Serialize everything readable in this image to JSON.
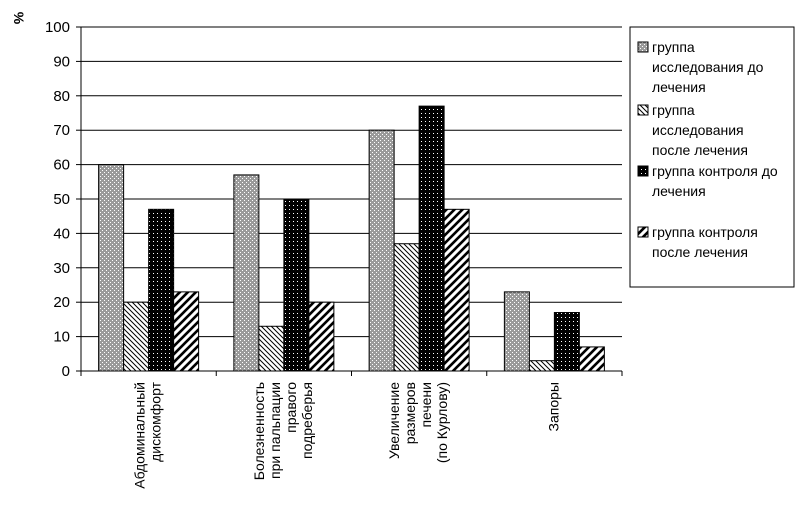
{
  "chart_data": {
    "type": "bar",
    "ylabel": "%",
    "ylim": [
      0,
      100
    ],
    "yticks": [
      0,
      10,
      20,
      30,
      40,
      50,
      60,
      70,
      80,
      90,
      100
    ],
    "grid": true,
    "legend_position": "right",
    "categories": [
      [
        "Абдоминальный",
        "дискомфорт"
      ],
      [
        "Болезненность",
        "при пальпации",
        "правого",
        "подреберья"
      ],
      [
        "Увеличение",
        "размеров",
        "печени",
        "(по Курлову)"
      ],
      [
        "Запоры"
      ]
    ],
    "series": [
      {
        "name": "группа исследования до лечения",
        "legend_lines": [
          "группа",
          "исследования до",
          "лечения"
        ],
        "pattern": "dots-on-gray",
        "values": [
          60,
          57,
          70,
          23
        ]
      },
      {
        "name": "группа исследования после лечения",
        "legend_lines": [
          "группа",
          "исследования",
          "после лечения"
        ],
        "pattern": "diagonal-backslash",
        "values": [
          20,
          13,
          37,
          3
        ]
      },
      {
        "name": "группа контроля до лечения",
        "legend_lines": [
          "группа контроля до",
          "лечения"
        ],
        "pattern": "dots-on-black",
        "values": [
          47,
          50,
          77,
          17
        ]
      },
      {
        "name": "группа контроля после лечения",
        "legend_lines": [
          "группа контроля",
          "после лечения"
        ],
        "pattern": "diagonal-slash-wide",
        "values": [
          23,
          20,
          47,
          7
        ]
      }
    ]
  }
}
